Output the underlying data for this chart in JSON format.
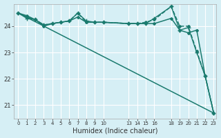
{
  "xlabel": "Humidex (Indice chaleur)",
  "ylabel": "",
  "bg_color": "#d6eff5",
  "grid_color": "#ffffff",
  "line_color": "#1a7a6e",
  "xlim_min": -0.5,
  "xlim_max": 23.3,
  "ylim_min": 20.5,
  "ylim_max": 24.85,
  "yticks": [
    21,
    22,
    23,
    24
  ],
  "xtick_positions": [
    0,
    1,
    2,
    3,
    4,
    5,
    6,
    7,
    8,
    9,
    10,
    13,
    14,
    15,
    16,
    18,
    19,
    20,
    21,
    22,
    23
  ],
  "xtick_labels": [
    "0",
    "1",
    "2",
    "3",
    "4",
    "5",
    "6",
    "7",
    "8",
    "9",
    "10",
    "13",
    "14",
    "15",
    "16",
    "18",
    "19",
    "20",
    "21",
    "22",
    "23"
  ],
  "series": [
    {
      "x": [
        0,
        1,
        2,
        3,
        4,
        5,
        6,
        7,
        8,
        9,
        10,
        13,
        14,
        15,
        16,
        18,
        19,
        20,
        21,
        22,
        23
      ],
      "y": [
        24.5,
        24.4,
        24.25,
        24.0,
        24.1,
        24.15,
        24.2,
        24.35,
        24.15,
        24.15,
        24.15,
        24.1,
        24.1,
        24.1,
        24.1,
        24.3,
        23.85,
        23.75,
        23.85,
        22.1,
        20.7
      ],
      "marker": "D",
      "markersize": 2.0,
      "linewidth": 1.1,
      "dashed": false
    },
    {
      "x": [
        0,
        1,
        2,
        3,
        4,
        5,
        6,
        7,
        8,
        9,
        10,
        13,
        14,
        15,
        16,
        18,
        19,
        20,
        21,
        22,
        23
      ],
      "y": [
        24.5,
        24.35,
        24.25,
        24.05,
        24.1,
        24.15,
        24.2,
        24.5,
        24.15,
        24.15,
        24.15,
        24.1,
        24.1,
        24.15,
        24.25,
        24.75,
        24.0,
        24.0,
        23.05,
        22.1,
        20.7
      ],
      "marker": "D",
      "markersize": 2.0,
      "linewidth": 1.1,
      "dashed": true
    },
    {
      "x": [
        0,
        1,
        2,
        3,
        4,
        5,
        6,
        7,
        8,
        9,
        10,
        13,
        14,
        15,
        16,
        18,
        19,
        20,
        21,
        22,
        23
      ],
      "y": [
        24.5,
        24.3,
        24.25,
        24.05,
        24.1,
        24.15,
        24.2,
        24.5,
        24.2,
        24.15,
        24.15,
        24.1,
        24.1,
        24.1,
        24.3,
        24.75,
        23.85,
        23.95,
        23.0,
        22.1,
        20.7
      ],
      "marker": "+",
      "markersize": 4.0,
      "linewidth": 1.0,
      "dashed": false
    },
    {
      "x": [
        0,
        23
      ],
      "y": [
        24.5,
        20.7
      ],
      "marker": null,
      "markersize": 0,
      "linewidth": 1.1,
      "dashed": false
    }
  ]
}
